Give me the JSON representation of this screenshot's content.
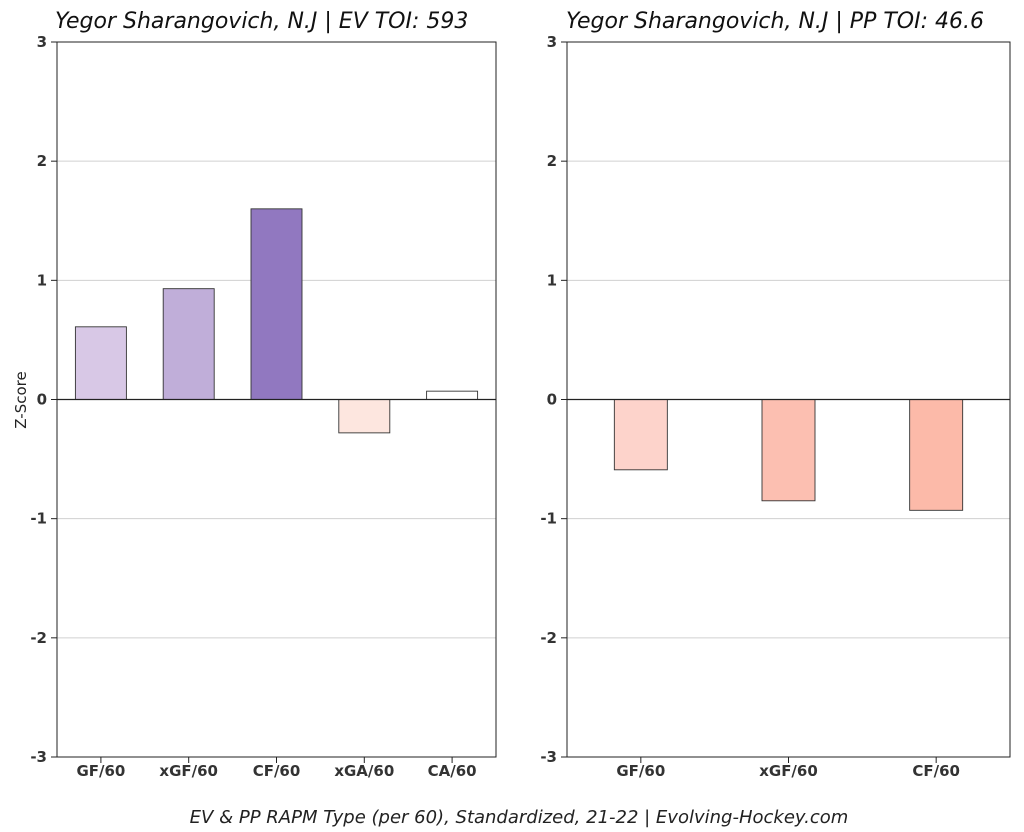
{
  "caption": "EV & PP RAPM Type (per 60), Standardized, 21-22    |    Evolving-Hockey.com",
  "chart_data": [
    {
      "type": "bar",
      "title": "Yegor Sharangovich, N.J  |  EV TOI: 593",
      "ylabel": "Z-Score",
      "xlabel": "",
      "ylim": [
        -3,
        3
      ],
      "yticks": [
        "3",
        "2",
        "1",
        "0",
        "-1",
        "-2",
        "-3"
      ],
      "grid": true,
      "categories": [
        "GF/60",
        "xGF/60",
        "CF/60",
        "xGA/60",
        "CA/60"
      ],
      "values": [
        0.61,
        0.93,
        1.6,
        -0.28,
        0.07
      ],
      "colors": [
        "#d8c8e6",
        "#c0aed9",
        "#9178c0",
        "#fde6df",
        "#ffffff"
      ]
    },
    {
      "type": "bar",
      "title": "Yegor Sharangovich, N.J  |  PP TOI: 46.6",
      "ylabel": "",
      "xlabel": "",
      "ylim": [
        -3,
        3
      ],
      "yticks": [
        "3",
        "2",
        "1",
        "0",
        "-1",
        "-2",
        "-3"
      ],
      "grid": true,
      "categories": [
        "GF/60",
        "xGF/60",
        "CF/60"
      ],
      "values": [
        -0.59,
        -0.85,
        -0.93
      ],
      "colors": [
        "#fdd3cb",
        "#fcbfb1",
        "#fcbaa9"
      ]
    }
  ]
}
